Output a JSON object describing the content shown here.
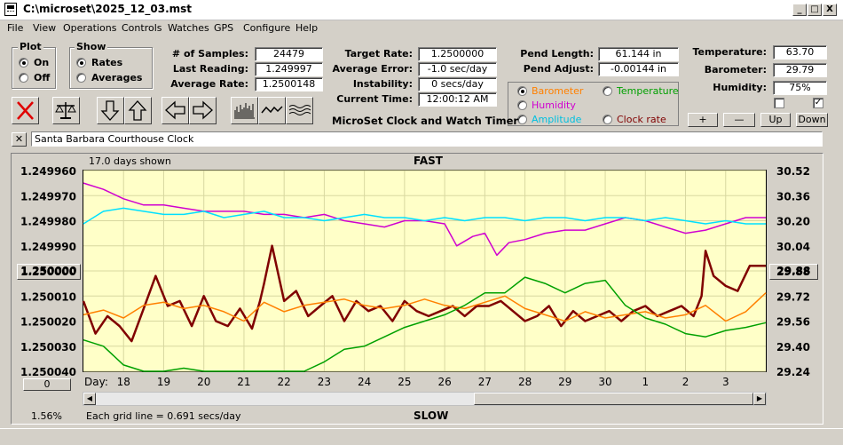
{
  "window": {
    "title": "C:\\microset\\2025_12_03.mst",
    "buttons": [
      "_",
      "□",
      "X"
    ]
  },
  "menu": [
    "File",
    "View",
    "Operations",
    "Controls",
    "Watches",
    "GPS",
    "Configure",
    "Help"
  ],
  "plot_group": {
    "label": "Plot",
    "options": [
      "On",
      "Off"
    ],
    "selected": "On"
  },
  "show_group": {
    "label": "Show",
    "options": [
      "Rates",
      "Averages"
    ],
    "selected": "Rates"
  },
  "stats": {
    "samples_label": "# of Samples:",
    "samples": "24479",
    "last_reading_label": "Last Reading:",
    "last_reading": "1.249997",
    "average_rate_label": "Average Rate:",
    "average_rate": "1.2500148"
  },
  "target": {
    "target_rate_label": "Target Rate:",
    "target_rate": "1.2500000",
    "average_error_label": "Average Error:",
    "average_error": "-1.0 sec/day",
    "instability_label": "Instability:",
    "instability": "0 secs/day",
    "current_time_label": "Current Time:",
    "current_time": "12:00:12 AM"
  },
  "app_name": "MicroSet Clock and Watch Timer",
  "pendulum": {
    "length_label": "Pend Length:",
    "length": "61.144 in",
    "adjust_label": "Pend Adjust:",
    "adjust": "-0.00144 in"
  },
  "sensor_select": {
    "options": [
      {
        "label": "Barometer",
        "color": "#ff8000",
        "selected": true
      },
      {
        "label": "Temperature",
        "color": "#00a000",
        "selected": false
      },
      {
        "label": "Humidity",
        "color": "#d000d0",
        "selected": false
      },
      {
        "label": "Amplitude",
        "color": "#00c0e0",
        "selected": false
      },
      {
        "label": "Clock rate",
        "color": "#800000",
        "selected": false
      }
    ]
  },
  "environment": {
    "temperature_label": "Temperature:",
    "temperature": "63.70",
    "barometer_label": "Barometer:",
    "barometer": "29.79",
    "humidity_label": "Humidity:",
    "humidity": "75%",
    "checkbox1_checked": false,
    "checkbox2_checked": true
  },
  "small_buttons": {
    "plus": "+",
    "minus": "—",
    "up": "Up",
    "down": "Down"
  },
  "toolbar_icons": [
    "cancel-icon",
    "scale-icon",
    "arrow-down-icon",
    "arrow-up-icon",
    "arrow-left-icon",
    "arrow-right-icon",
    "bar-chart-icon",
    "line-wave-icon",
    "wave-lines-icon"
  ],
  "clock_name": "Santa Barbara Courthouse Clock",
  "chart": {
    "days_shown": "17.0 days shown",
    "top_label": "FAST",
    "bottom_label": "SLOW",
    "grid_note": "Each grid line = 0.691 secs/day",
    "percent": "1.56%",
    "left_value_button": "1.250000",
    "right_value_button": "29.88",
    "zero_button": "0",
    "day_label": "Day:"
  },
  "chart_data": {
    "type": "line",
    "x_ticks": [
      "18",
      "19",
      "20",
      "21",
      "22",
      "23",
      "24",
      "25",
      "26",
      "27",
      "28",
      "29",
      "30",
      "1",
      "2",
      "3"
    ],
    "y_left_ticks": [
      "1.249960",
      "1.249970",
      "1.249980",
      "1.249990",
      "1.250000",
      "1.250010",
      "1.250020",
      "1.250030",
      "1.250040"
    ],
    "y_right_ticks": [
      "30.52",
      "30.36",
      "30.20",
      "30.04",
      "29.88",
      "29.72",
      "29.56",
      "29.40",
      "29.24"
    ],
    "ylim_left": [
      1.25004,
      1.24996
    ],
    "ylim_right": [
      29.24,
      30.52
    ],
    "xlim": [
      17.0,
      34.0
    ],
    "series": [
      {
        "color": "#800000",
        "width": 2.5,
        "x": [
          17.0,
          17.3,
          17.6,
          17.9,
          18.2,
          18.5,
          18.8,
          19.1,
          19.4,
          19.7,
          20.0,
          20.3,
          20.6,
          20.9,
          21.2,
          21.4,
          21.5,
          21.7,
          22.0,
          22.3,
          22.6,
          22.9,
          23.2,
          23.5,
          23.8,
          24.1,
          24.4,
          24.7,
          25.0,
          25.3,
          25.6,
          25.9,
          26.2,
          26.5,
          26.8,
          27.1,
          27.4,
          27.7,
          28.0,
          28.3,
          28.6,
          28.9,
          29.2,
          29.5,
          29.8,
          30.1,
          30.4,
          30.7,
          31.0,
          31.3,
          31.6,
          31.9,
          32.2,
          32.4,
          32.5,
          32.7,
          33.0,
          33.3,
          33.6,
          34.0
        ],
        "y": [
          1.250012,
          1.250025,
          1.250018,
          1.250022,
          1.250028,
          1.250015,
          1.250002,
          1.250014,
          1.250012,
          1.250022,
          1.25001,
          1.25002,
          1.250022,
          1.250015,
          1.250023,
          1.250012,
          1.250005,
          1.24999,
          1.250012,
          1.250008,
          1.250018,
          1.250014,
          1.25001,
          1.25002,
          1.250012,
          1.250016,
          1.250014,
          1.25002,
          1.250012,
          1.250016,
          1.250018,
          1.250016,
          1.250014,
          1.250018,
          1.250014,
          1.250014,
          1.250012,
          1.250016,
          1.25002,
          1.250018,
          1.250014,
          1.250022,
          1.250016,
          1.25002,
          1.250018,
          1.250016,
          1.25002,
          1.250016,
          1.250014,
          1.250018,
          1.250016,
          1.250014,
          1.250018,
          1.25001,
          1.249992,
          1.250002,
          1.250006,
          1.250008,
          1.249998,
          1.249998
        ]
      },
      {
        "color": "#ff8000",
        "width": 1.5,
        "x": [
          17.0,
          17.5,
          18.0,
          18.5,
          19.0,
          19.5,
          20.0,
          20.5,
          21.0,
          21.5,
          22.0,
          22.5,
          23.0,
          23.5,
          24.0,
          24.5,
          25.0,
          25.5,
          26.0,
          26.5,
          27.0,
          27.5,
          28.0,
          28.5,
          29.0,
          29.5,
          30.0,
          30.5,
          31.0,
          31.5,
          32.0,
          32.5,
          33.0,
          33.5,
          34.0
        ],
        "y": [
          29.6,
          29.63,
          29.58,
          29.66,
          29.68,
          29.64,
          29.66,
          29.62,
          29.56,
          29.68,
          29.62,
          29.66,
          29.68,
          29.7,
          29.66,
          29.64,
          29.66,
          29.7,
          29.66,
          29.64,
          29.68,
          29.72,
          29.64,
          29.6,
          29.56,
          29.62,
          29.58,
          29.6,
          29.62,
          29.58,
          29.6,
          29.66,
          29.56,
          29.62,
          29.74
        ]
      },
      {
        "color": "#00a000",
        "width": 1.5,
        "x": [
          17.0,
          17.5,
          18.0,
          18.5,
          19.0,
          19.5,
          20.0,
          20.5,
          21.0,
          21.5,
          22.0,
          22.5,
          23.0,
          23.5,
          24.0,
          24.5,
          25.0,
          25.5,
          26.0,
          26.5,
          27.0,
          27.5,
          28.0,
          28.5,
          29.0,
          29.5,
          30.0,
          30.5,
          31.0,
          31.5,
          32.0,
          32.5,
          33.0,
          33.5,
          34.0
        ],
        "y": [
          29.44,
          29.4,
          29.28,
          29.24,
          29.24,
          29.26,
          29.24,
          29.24,
          29.24,
          29.24,
          29.24,
          29.24,
          29.3,
          29.38,
          29.4,
          29.46,
          29.52,
          29.56,
          29.6,
          29.66,
          29.74,
          29.74,
          29.84,
          29.8,
          29.74,
          29.8,
          29.82,
          29.66,
          29.58,
          29.54,
          29.48,
          29.46,
          29.5,
          29.52,
          29.55
        ]
      },
      {
        "color": "#d000d0",
        "width": 1.5,
        "x": [
          17.0,
          17.5,
          18.0,
          18.5,
          19.0,
          19.5,
          20.0,
          20.5,
          21.0,
          21.5,
          22.0,
          22.5,
          23.0,
          23.5,
          24.0,
          24.5,
          25.0,
          25.5,
          26.0,
          26.3,
          26.7,
          27.0,
          27.3,
          27.6,
          28.0,
          28.5,
          29.0,
          29.5,
          30.0,
          30.5,
          31.0,
          31.5,
          32.0,
          32.5,
          33.0,
          33.5,
          34.0
        ],
        "y": [
          30.44,
          30.4,
          30.34,
          30.3,
          30.3,
          30.28,
          30.26,
          30.26,
          30.26,
          30.24,
          30.24,
          30.22,
          30.24,
          30.2,
          30.18,
          30.16,
          30.2,
          30.2,
          30.18,
          30.04,
          30.1,
          30.12,
          29.98,
          30.06,
          30.08,
          30.12,
          30.14,
          30.14,
          30.18,
          30.22,
          30.2,
          30.16,
          30.12,
          30.14,
          30.18,
          30.22,
          30.22
        ]
      },
      {
        "color": "#00e0ff",
        "width": 1.5,
        "x": [
          17.0,
          17.5,
          18.0,
          18.5,
          19.0,
          19.5,
          20.0,
          20.5,
          21.0,
          21.5,
          22.0,
          22.5,
          23.0,
          23.5,
          24.0,
          24.5,
          25.0,
          25.5,
          26.0,
          26.5,
          27.0,
          27.5,
          28.0,
          28.5,
          29.0,
          29.5,
          30.0,
          30.5,
          31.0,
          31.5,
          32.0,
          32.5,
          33.0,
          33.5,
          34.0
        ],
        "y": [
          30.18,
          30.26,
          30.28,
          30.26,
          30.24,
          30.24,
          30.26,
          30.22,
          30.24,
          30.26,
          30.22,
          30.22,
          30.2,
          30.22,
          30.24,
          30.22,
          30.22,
          30.2,
          30.22,
          30.2,
          30.22,
          30.22,
          30.2,
          30.22,
          30.22,
          30.2,
          30.22,
          30.22,
          30.2,
          30.22,
          30.2,
          30.18,
          30.2,
          30.18,
          30.18
        ]
      }
    ]
  }
}
